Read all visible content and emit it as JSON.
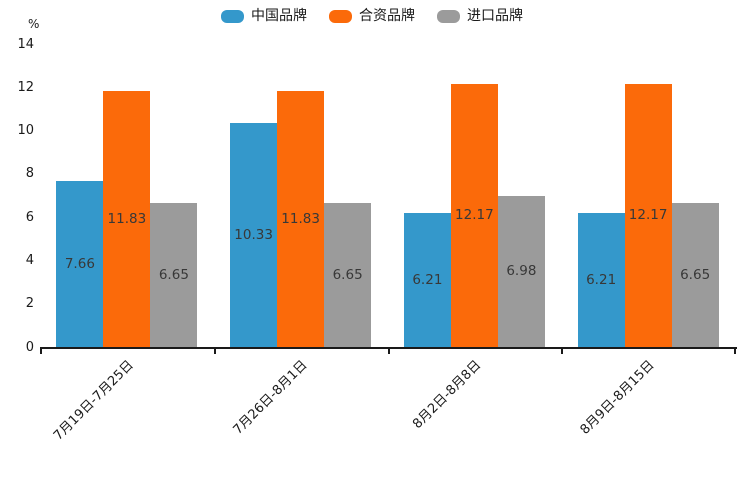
{
  "chart_data": {
    "type": "bar",
    "title": "",
    "categories": [
      "7月19日-7月25日",
      "7月26日-8月1日",
      "8月2日-8月8日",
      "8月9日-8月15日"
    ],
    "series": [
      {
        "name": "中国品牌",
        "color": "#3498CB",
        "values": [
          7.66,
          10.33,
          6.21,
          6.21
        ]
      },
      {
        "name": "合资品牌",
        "color": "#FB6A0A",
        "values": [
          11.83,
          11.83,
          12.17,
          12.17
        ]
      },
      {
        "name": "进口品牌",
        "color": "#9B9B9B",
        "values": [
          6.65,
          6.65,
          6.98,
          6.65
        ]
      }
    ],
    "xlabel": "",
    "ylabel": "%",
    "ylim": [
      0,
      14
    ],
    "yticks": [
      0,
      2,
      4,
      6,
      8,
      10,
      12,
      14
    ],
    "grid": false,
    "legend_position": "top-center",
    "value_labels": true,
    "value_label_decimals": 2
  },
  "colors": {
    "background": "#ffffff",
    "axis": "#1a1a1a",
    "value_label_text": "#383838"
  }
}
